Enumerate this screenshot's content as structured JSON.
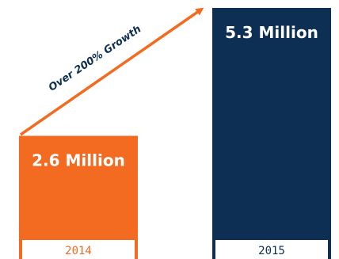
{
  "chart_data": {
    "type": "bar",
    "categories": [
      "2014",
      "2015"
    ],
    "values": [
      2.6,
      5.3
    ],
    "value_labels": [
      "2.6 Million",
      "5.3 Million"
    ],
    "annotation": "Over 200% Growth",
    "colors": {
      "bar_2014": "#f26b21",
      "bar_2015": "#0c2f53",
      "arrow": "#f26b21",
      "annotation": "#0c2f53"
    }
  }
}
